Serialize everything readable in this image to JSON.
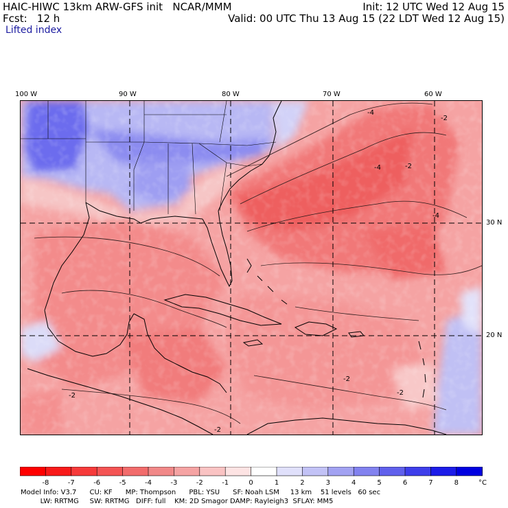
{
  "header": {
    "model_line": "HAIC-HIWC 13km ARW-GFS init   NCAR/MMM",
    "init_line": "Init: 12 UTC Wed 12 Aug 15",
    "fcst_line": "Fcst:   12 h",
    "valid_line": "Valid: 00 UTC Thu 13 Aug 15 (22 LDT Wed 12 Aug 15)",
    "field_name": "Lifted index"
  },
  "map": {
    "lon_labels": [
      "100 W",
      "90 W",
      "80 W",
      "70 W",
      "60 W"
    ],
    "lat_labels": [
      "30 N",
      "20 N"
    ],
    "contour_labels": [
      "-4",
      "-4",
      "-2",
      "-2",
      "-4",
      "-2",
      "-2",
      "-2",
      "-2"
    ]
  },
  "colorbar": {
    "ticks": [
      "-8",
      "-7",
      "-6",
      "-5",
      "-4",
      "-3",
      "-2",
      "-1",
      "0",
      "1",
      "2",
      "3",
      "4",
      "5",
      "6",
      "7",
      "8"
    ],
    "unit": "°C",
    "colors": [
      "#ff0000",
      "#f81a1a",
      "#f63a3a",
      "#f45454",
      "#f26c6c",
      "#f18888",
      "#f5a3a3",
      "#fac3c3",
      "#fde3e3",
      "#ffffff",
      "#e0e0fb",
      "#c2c2f6",
      "#a2a2f2",
      "#8282ef",
      "#6060ec",
      "#3e3eea",
      "#1c1ce8",
      "#0000e0"
    ]
  },
  "footer": {
    "line1": "Model Info: V3.7      CU: KF      MP: Thompson      PBL: YSU      SF: Noah LSM     13 km    51 levels   60 sec",
    "line2": "         LW: RRTMG     SW: RRTMG   DIFF: full    KM: 2D Smagor DAMP: Rayleigh3  SFLAY: MM5"
  }
}
